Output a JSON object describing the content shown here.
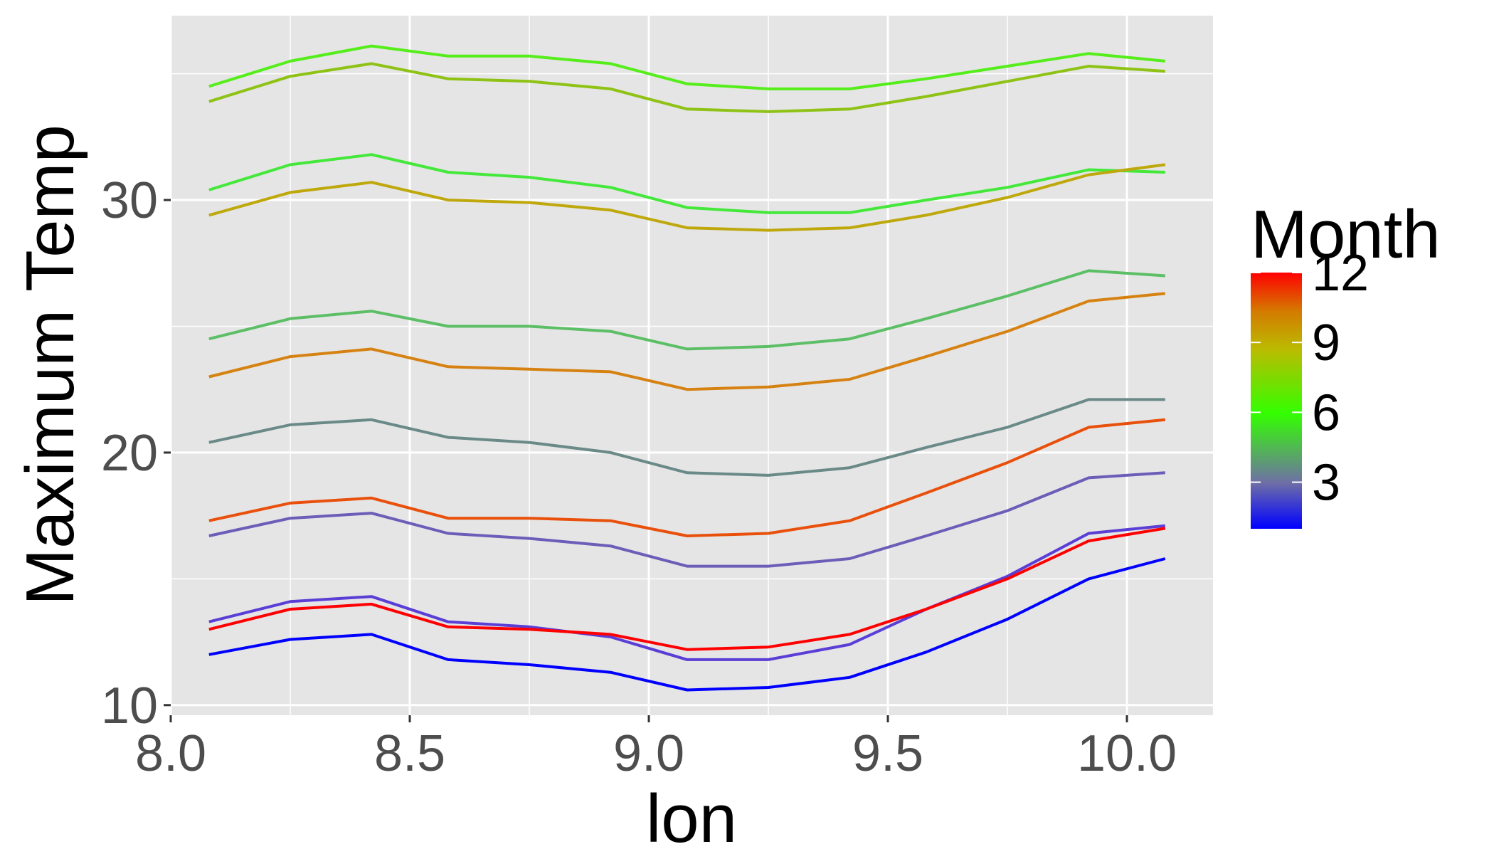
{
  "chart_data": {
    "type": "line",
    "xlabel": "lon",
    "ylabel": "Maximum Temp",
    "xlim": [
      8.0,
      10.18
    ],
    "ylim": [
      9.6,
      37.3
    ],
    "x_ticks": [
      "8.0",
      "8.5",
      "9.0",
      "9.5",
      "10.0"
    ],
    "y_ticks": [
      "10",
      "20",
      "30"
    ],
    "grid": true,
    "legend": {
      "title": "Month",
      "type": "colorbar",
      "position": "right",
      "ticks": [
        "3",
        "6",
        "9",
        "12"
      ],
      "range": [
        1,
        12
      ],
      "colors": [
        "#0000ff",
        "#6f6fa6",
        "#33ff00",
        "#bbbb00",
        "#d47a00",
        "#ff0000"
      ]
    },
    "x": [
      8.08,
      8.25,
      8.42,
      8.58,
      8.75,
      8.92,
      9.08,
      9.25,
      9.42,
      9.58,
      9.75,
      9.92,
      10.08
    ],
    "series": [
      {
        "month": 1,
        "color": "#0000ff",
        "values": [
          12.0,
          12.6,
          12.8,
          11.8,
          11.6,
          11.3,
          10.6,
          10.7,
          11.1,
          12.1,
          13.4,
          15.0,
          15.8
        ]
      },
      {
        "month": 2,
        "color": "#5a3ed6",
        "values": [
          13.3,
          14.1,
          14.3,
          13.3,
          13.1,
          12.7,
          11.8,
          11.8,
          12.4,
          13.8,
          15.1,
          16.8,
          17.1
        ]
      },
      {
        "month": 3,
        "color": "#6b5db8",
        "values": [
          16.7,
          17.4,
          17.6,
          16.8,
          16.6,
          16.3,
          15.5,
          15.5,
          15.8,
          16.7,
          17.7,
          19.0,
          19.2
        ]
      },
      {
        "month": 4,
        "color": "#6a8a88",
        "values": [
          20.4,
          21.1,
          21.3,
          20.6,
          20.4,
          20.0,
          19.2,
          19.1,
          19.4,
          20.2,
          21.0,
          22.1,
          22.1
        ]
      },
      {
        "month": 5,
        "color": "#5cbf66",
        "values": [
          24.5,
          25.3,
          25.6,
          25.0,
          25.0,
          24.8,
          24.1,
          24.2,
          24.5,
          25.3,
          26.2,
          27.2,
          27.0
        ]
      },
      {
        "month": 6,
        "color": "#44e83a",
        "values": [
          30.4,
          31.4,
          31.8,
          31.1,
          30.9,
          30.5,
          29.7,
          29.5,
          29.5,
          30.0,
          30.5,
          31.2,
          31.1
        ]
      },
      {
        "month": 7,
        "color": "#55ee1a",
        "values": [
          34.5,
          35.5,
          36.1,
          35.7,
          35.7,
          35.4,
          34.6,
          34.4,
          34.4,
          34.8,
          35.3,
          35.8,
          35.5
        ]
      },
      {
        "month": 8,
        "color": "#8ec214",
        "values": [
          33.9,
          34.9,
          35.4,
          34.8,
          34.7,
          34.4,
          33.6,
          33.5,
          33.6,
          34.1,
          34.7,
          35.3,
          35.1
        ]
      },
      {
        "month": 9,
        "color": "#bea80c",
        "values": [
          29.4,
          30.3,
          30.7,
          30.0,
          29.9,
          29.6,
          28.9,
          28.8,
          28.9,
          29.4,
          30.1,
          31.0,
          31.4
        ]
      },
      {
        "month": 10,
        "color": "#d68212",
        "values": [
          23.0,
          23.8,
          24.1,
          23.4,
          23.3,
          23.2,
          22.5,
          22.6,
          22.9,
          23.8,
          24.8,
          26.0,
          26.3
        ]
      },
      {
        "month": 11,
        "color": "#e8500c",
        "values": [
          17.3,
          18.0,
          18.2,
          17.4,
          17.4,
          17.3,
          16.7,
          16.8,
          17.3,
          18.4,
          19.6,
          21.0,
          21.3
        ]
      },
      {
        "month": 12,
        "color": "#ff0000",
        "values": [
          13.0,
          13.8,
          14.0,
          13.1,
          13.0,
          12.8,
          12.2,
          12.3,
          12.8,
          13.8,
          15.0,
          16.5,
          17.0
        ]
      }
    ]
  }
}
